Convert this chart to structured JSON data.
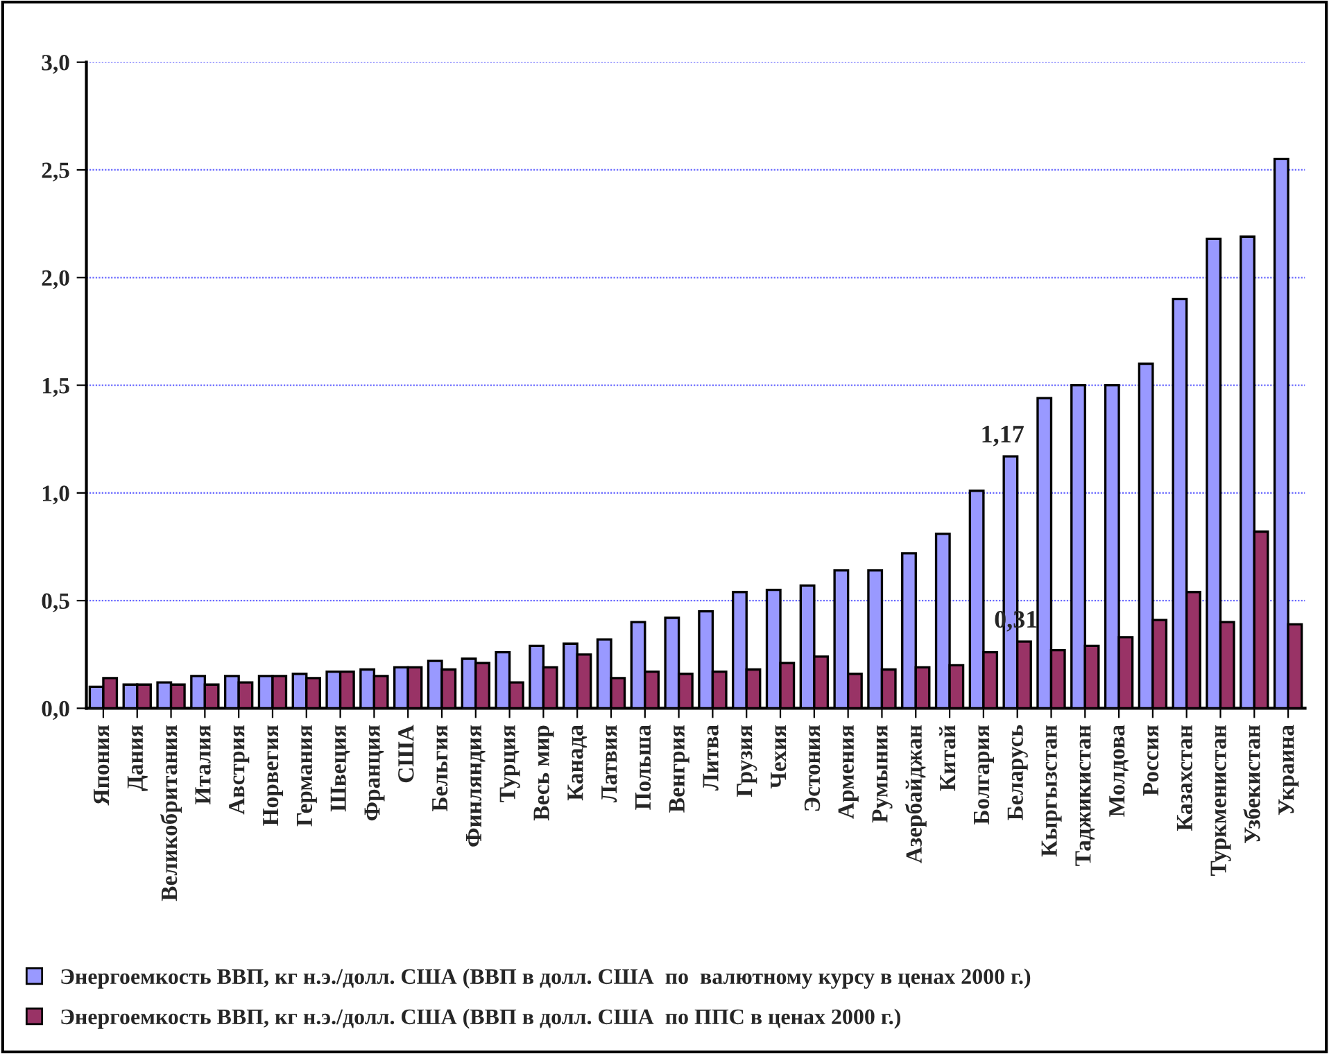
{
  "chart_data": {
    "type": "bar",
    "categories": [
      "Япония",
      "Дания",
      "Великобритания",
      "Италия",
      "Австрия",
      "Норвегия",
      "Германия",
      "Швеция",
      "Франция",
      "США",
      "Бельгия",
      "Финляндия",
      "Турция",
      "Весь мир",
      "Канада",
      "Латвия",
      "Польша",
      "Венгрия",
      "Литва",
      "Грузия",
      "Чехия",
      "Эстония",
      "Армения",
      "Румыния",
      "Азербайджан",
      "Китай",
      "Болгария",
      "Беларусь",
      "Кыргызстан",
      "Таджикистан",
      "Молдова",
      "Россия",
      "Казахстан",
      "Туркменистан",
      "Узбекистан",
      "Украина"
    ],
    "series": [
      {
        "name": "Энергоемкость ВВП, кг н.э./долл. США (ВВП в долл. США  по  валютному курсу в ценах 2000 г.)",
        "color": "#9999ff",
        "values": [
          0.1,
          0.11,
          0.12,
          0.15,
          0.15,
          0.15,
          0.16,
          0.17,
          0.18,
          0.19,
          0.22,
          0.23,
          0.26,
          0.29,
          0.3,
          0.32,
          0.4,
          0.42,
          0.45,
          0.54,
          0.55,
          0.57,
          0.64,
          0.64,
          0.72,
          0.81,
          1.01,
          1.17,
          1.44,
          1.5,
          1.5,
          1.6,
          1.9,
          2.18,
          2.19,
          2.55
        ],
        "value_labels": [
          null,
          null,
          null,
          null,
          null,
          null,
          null,
          null,
          null,
          null,
          null,
          null,
          null,
          null,
          null,
          null,
          null,
          null,
          null,
          null,
          null,
          null,
          null,
          null,
          null,
          null,
          null,
          "1,17",
          null,
          null,
          null,
          null,
          null,
          null,
          null,
          null
        ]
      },
      {
        "name": "Энергоемкость ВВП, кг н.э./долл. США (ВВП в долл. США  по ППС в ценах 2000 г.)",
        "color": "#993366",
        "values": [
          0.14,
          0.11,
          0.11,
          0.11,
          0.12,
          0.15,
          0.14,
          0.17,
          0.15,
          0.19,
          0.18,
          0.21,
          0.12,
          0.19,
          0.25,
          0.14,
          0.17,
          0.16,
          0.17,
          0.18,
          0.21,
          0.24,
          0.16,
          0.18,
          0.19,
          0.2,
          0.26,
          0.31,
          0.27,
          0.29,
          0.33,
          0.41,
          0.54,
          0.4,
          0.82,
          0.39
        ],
        "value_labels": [
          null,
          null,
          null,
          null,
          null,
          null,
          null,
          null,
          null,
          null,
          null,
          null,
          null,
          null,
          null,
          null,
          null,
          null,
          null,
          null,
          null,
          null,
          null,
          null,
          null,
          null,
          null,
          "0,31",
          null,
          null,
          null,
          null,
          null,
          null,
          null,
          null
        ]
      }
    ],
    "ylim": [
      0,
      3
    ],
    "yticks": [
      {
        "value": 0,
        "label": "0,0"
      },
      {
        "value": 0.5,
        "label": "0,5"
      },
      {
        "value": 1,
        "label": "1,0"
      },
      {
        "value": 1.5,
        "label": "1,5"
      },
      {
        "value": 2,
        "label": "2,0"
      },
      {
        "value": 2.5,
        "label": "2,5"
      },
      {
        "value": 3,
        "label": "3,0"
      }
    ],
    "grid": "y",
    "legend": "bottom"
  }
}
